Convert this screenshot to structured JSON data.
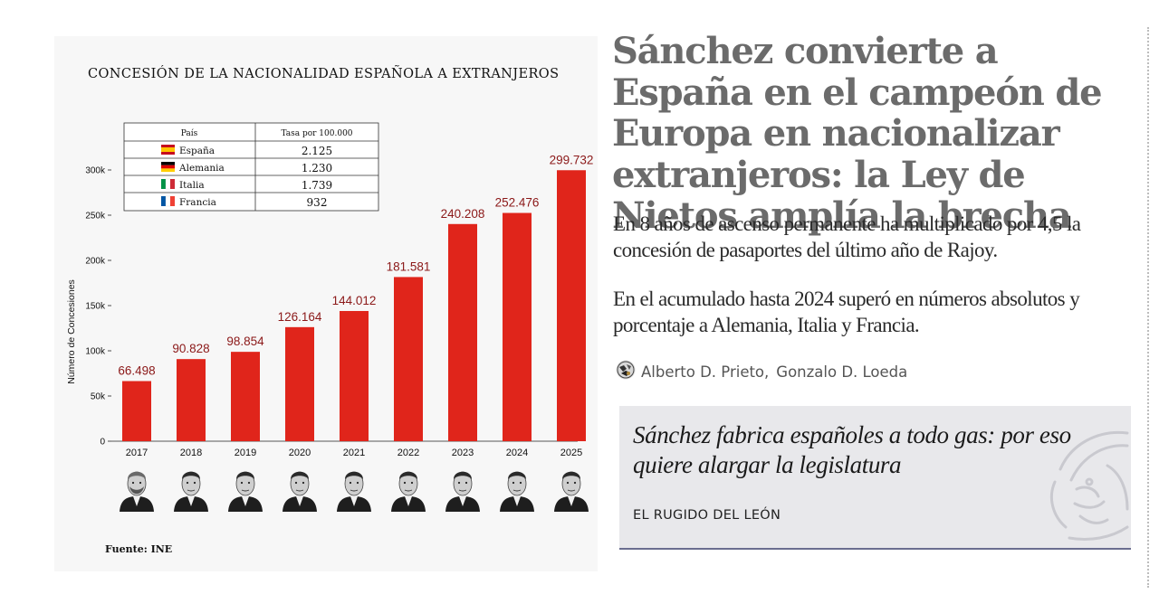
{
  "chart_data": {
    "type": "bar",
    "title": "CONCESIÓN DE LA NACIONALIDAD ESPAÑOLA A EXTRANJEROS",
    "categories": [
      "2017",
      "2018",
      "2019",
      "2020",
      "2021",
      "2022",
      "2023",
      "2024",
      "2025"
    ],
    "values": [
      66498,
      90828,
      98854,
      126164,
      144012,
      181581,
      240208,
      252476,
      299732
    ],
    "data_labels": [
      "66.498",
      "90.828",
      "98.854",
      "126.164",
      "144.012",
      "181.581",
      "240.208",
      "252.476",
      "299.732"
    ],
    "ylabel": "Número de Concesiones",
    "xlabel": "",
    "yticks": [
      {
        "value": 0,
        "label": "0"
      },
      {
        "value": 50000,
        "label": "50k"
      },
      {
        "value": 100000,
        "label": "100k"
      },
      {
        "value": 150000,
        "label": "150k"
      },
      {
        "value": 200000,
        "label": "200k"
      },
      {
        "value": 250000,
        "label": "250k"
      },
      {
        "value": 300000,
        "label": "300k"
      }
    ],
    "ylim": [
      0,
      300000
    ],
    "grid": false,
    "bar_color": "#e0251b",
    "label_color": "#8b1818",
    "source": "Fuente: INE",
    "portraits": [
      "rajoy-portrait",
      "sanchez-portrait",
      "sanchez-portrait",
      "sanchez-portrait",
      "sanchez-portrait",
      "sanchez-portrait",
      "sanchez-portrait",
      "sanchez-portrait",
      "sanchez-portrait"
    ],
    "inset_table": {
      "headers": [
        "País",
        "Tasa por 100.000"
      ],
      "rows": [
        {
          "country": "España",
          "rate": "2.125",
          "flag": "spain-flag-icon"
        },
        {
          "country": "Alemania",
          "rate": "1.230",
          "flag": "germany-flag-icon"
        },
        {
          "country": "Italia",
          "rate": "1.739",
          "flag": "italy-flag-icon"
        },
        {
          "country": "Francia",
          "rate": "932",
          "flag": "france-flag-icon"
        }
      ]
    }
  },
  "article": {
    "headline": "Sánchez convierte a España en el campeón de Europa en nacionalizar extranjeros: la Ley de Nietos amplía la brecha",
    "subheads": [
      "En 8 años de ascenso permanente ha multiplicado por 4,5 la concesión de pasaportes del último año de Rajoy.",
      "En el acumulado hasta 2024 superó en números absolutos y porcentaje a Alemania, Italia y Francia."
    ],
    "byline": {
      "icon": "author-avatar-icon",
      "authors": [
        "Alberto D. Prieto",
        "Gonzalo D. Loeda"
      ],
      "separator": ","
    },
    "related": {
      "title": "Sánchez fabrica españoles a todo gas: por eso quiere alargar la legislatura",
      "section": "EL RUGIDO DEL LEÓN",
      "watermark": "lion-head-icon"
    }
  },
  "colors": {
    "headline": "#6b6b6b",
    "body_text": "#2a2a2a",
    "card_bg": "#e8e8eb",
    "card_border": "#6a6d8f"
  }
}
